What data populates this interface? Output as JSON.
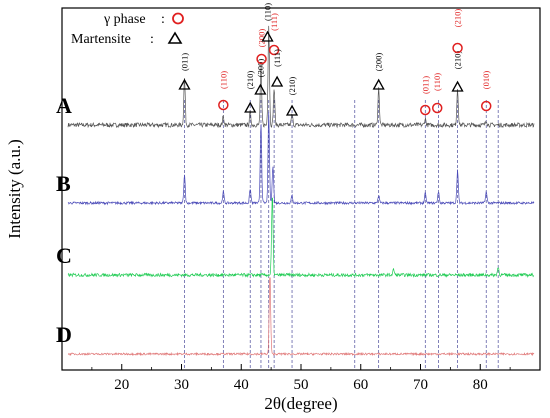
{
  "chart_data": {
    "type": "line",
    "xlabel": "2θ(degree)",
    "ylabel": "Intensity (a.u.)",
    "xlim": [
      10,
      90
    ],
    "xticks": [
      20,
      30,
      40,
      50,
      60,
      70,
      80
    ],
    "grid": false,
    "legend": {
      "placement": "top-left",
      "entries": [
        {
          "label": "γ phase",
          "separator": ":",
          "marker": "circle",
          "color": "#e02020"
        },
        {
          "label": "Martensite",
          "separator": ":",
          "marker": "triangle",
          "color": "#000000"
        }
      ]
    },
    "series": [
      {
        "name": "A",
        "color": "#555555",
        "peaks": [
          {
            "x": 30.5,
            "h": 0.45
          },
          {
            "x": 37.0,
            "h": 0.08
          },
          {
            "x": 41.5,
            "h": 0.12
          },
          {
            "x": 43.3,
            "h": 0.55
          },
          {
            "x": 44.6,
            "h": 0.95
          },
          {
            "x": 45.5,
            "h": 0.35
          },
          {
            "x": 48.5,
            "h": 0.1
          },
          {
            "x": 63.0,
            "h": 0.35
          },
          {
            "x": 70.8,
            "h": 0.06
          },
          {
            "x": 76.2,
            "h": 0.35
          },
          {
            "x": 81.0,
            "h": 0.05
          }
        ]
      },
      {
        "name": "B",
        "color": "#4a4ab8",
        "peaks": [
          {
            "x": 30.5,
            "h": 0.3
          },
          {
            "x": 37.0,
            "h": 0.12
          },
          {
            "x": 41.5,
            "h": 0.15
          },
          {
            "x": 43.3,
            "h": 0.85
          },
          {
            "x": 44.6,
            "h": 0.95
          },
          {
            "x": 45.3,
            "h": 0.4
          },
          {
            "x": 48.5,
            "h": 0.08
          },
          {
            "x": 63.0,
            "h": 0.08
          },
          {
            "x": 70.8,
            "h": 0.1
          },
          {
            "x": 73.0,
            "h": 0.12
          },
          {
            "x": 76.2,
            "h": 0.35
          },
          {
            "x": 81.0,
            "h": 0.12
          }
        ]
      },
      {
        "name": "C",
        "color": "#22cc55",
        "peaks": [
          {
            "x": 45.2,
            "h": 1.0
          },
          {
            "x": 65.5,
            "h": 0.07
          },
          {
            "x": 83.0,
            "h": 0.1
          }
        ]
      },
      {
        "name": "D",
        "color": "#e07878",
        "peaks": [
          {
            "x": 44.8,
            "h": 1.0
          }
        ]
      }
    ],
    "reference_lines": [
      30.5,
      37.0,
      41.5,
      43.3,
      44.6,
      45.5,
      48.5,
      59.0,
      63.0,
      70.8,
      73.0,
      76.2,
      81.0,
      83.0
    ],
    "annotations": [
      {
        "x": 30.5,
        "marker": "triangle",
        "label": "(011)"
      },
      {
        "x": 37.0,
        "marker": "circle",
        "label": "(110)"
      },
      {
        "x": 41.5,
        "marker": "triangle",
        "label": "(210)"
      },
      {
        "x": 43.2,
        "marker": "triangle",
        "label": "(200)"
      },
      {
        "x": 43.4,
        "marker": "circle",
        "label": "(200)"
      },
      {
        "x": 44.4,
        "marker": "triangle",
        "label": "(110)"
      },
      {
        "x": 45.5,
        "marker": "circle",
        "label": "(111)"
      },
      {
        "x": 46.0,
        "marker": "triangle",
        "label": "(111)"
      },
      {
        "x": 48.5,
        "marker": "triangle",
        "label": "(210)"
      },
      {
        "x": 63.0,
        "marker": "triangle",
        "label": "(200)"
      },
      {
        "x": 70.8,
        "marker": "circle",
        "label": "(011)"
      },
      {
        "x": 72.8,
        "marker": "circle",
        "label": "(110)"
      },
      {
        "x": 76.2,
        "marker": "triangle",
        "label": "(210)"
      },
      {
        "x": 76.2,
        "marker": "circle",
        "label": "(210)"
      },
      {
        "x": 81.0,
        "marker": "circle",
        "label": "(010)"
      }
    ]
  }
}
